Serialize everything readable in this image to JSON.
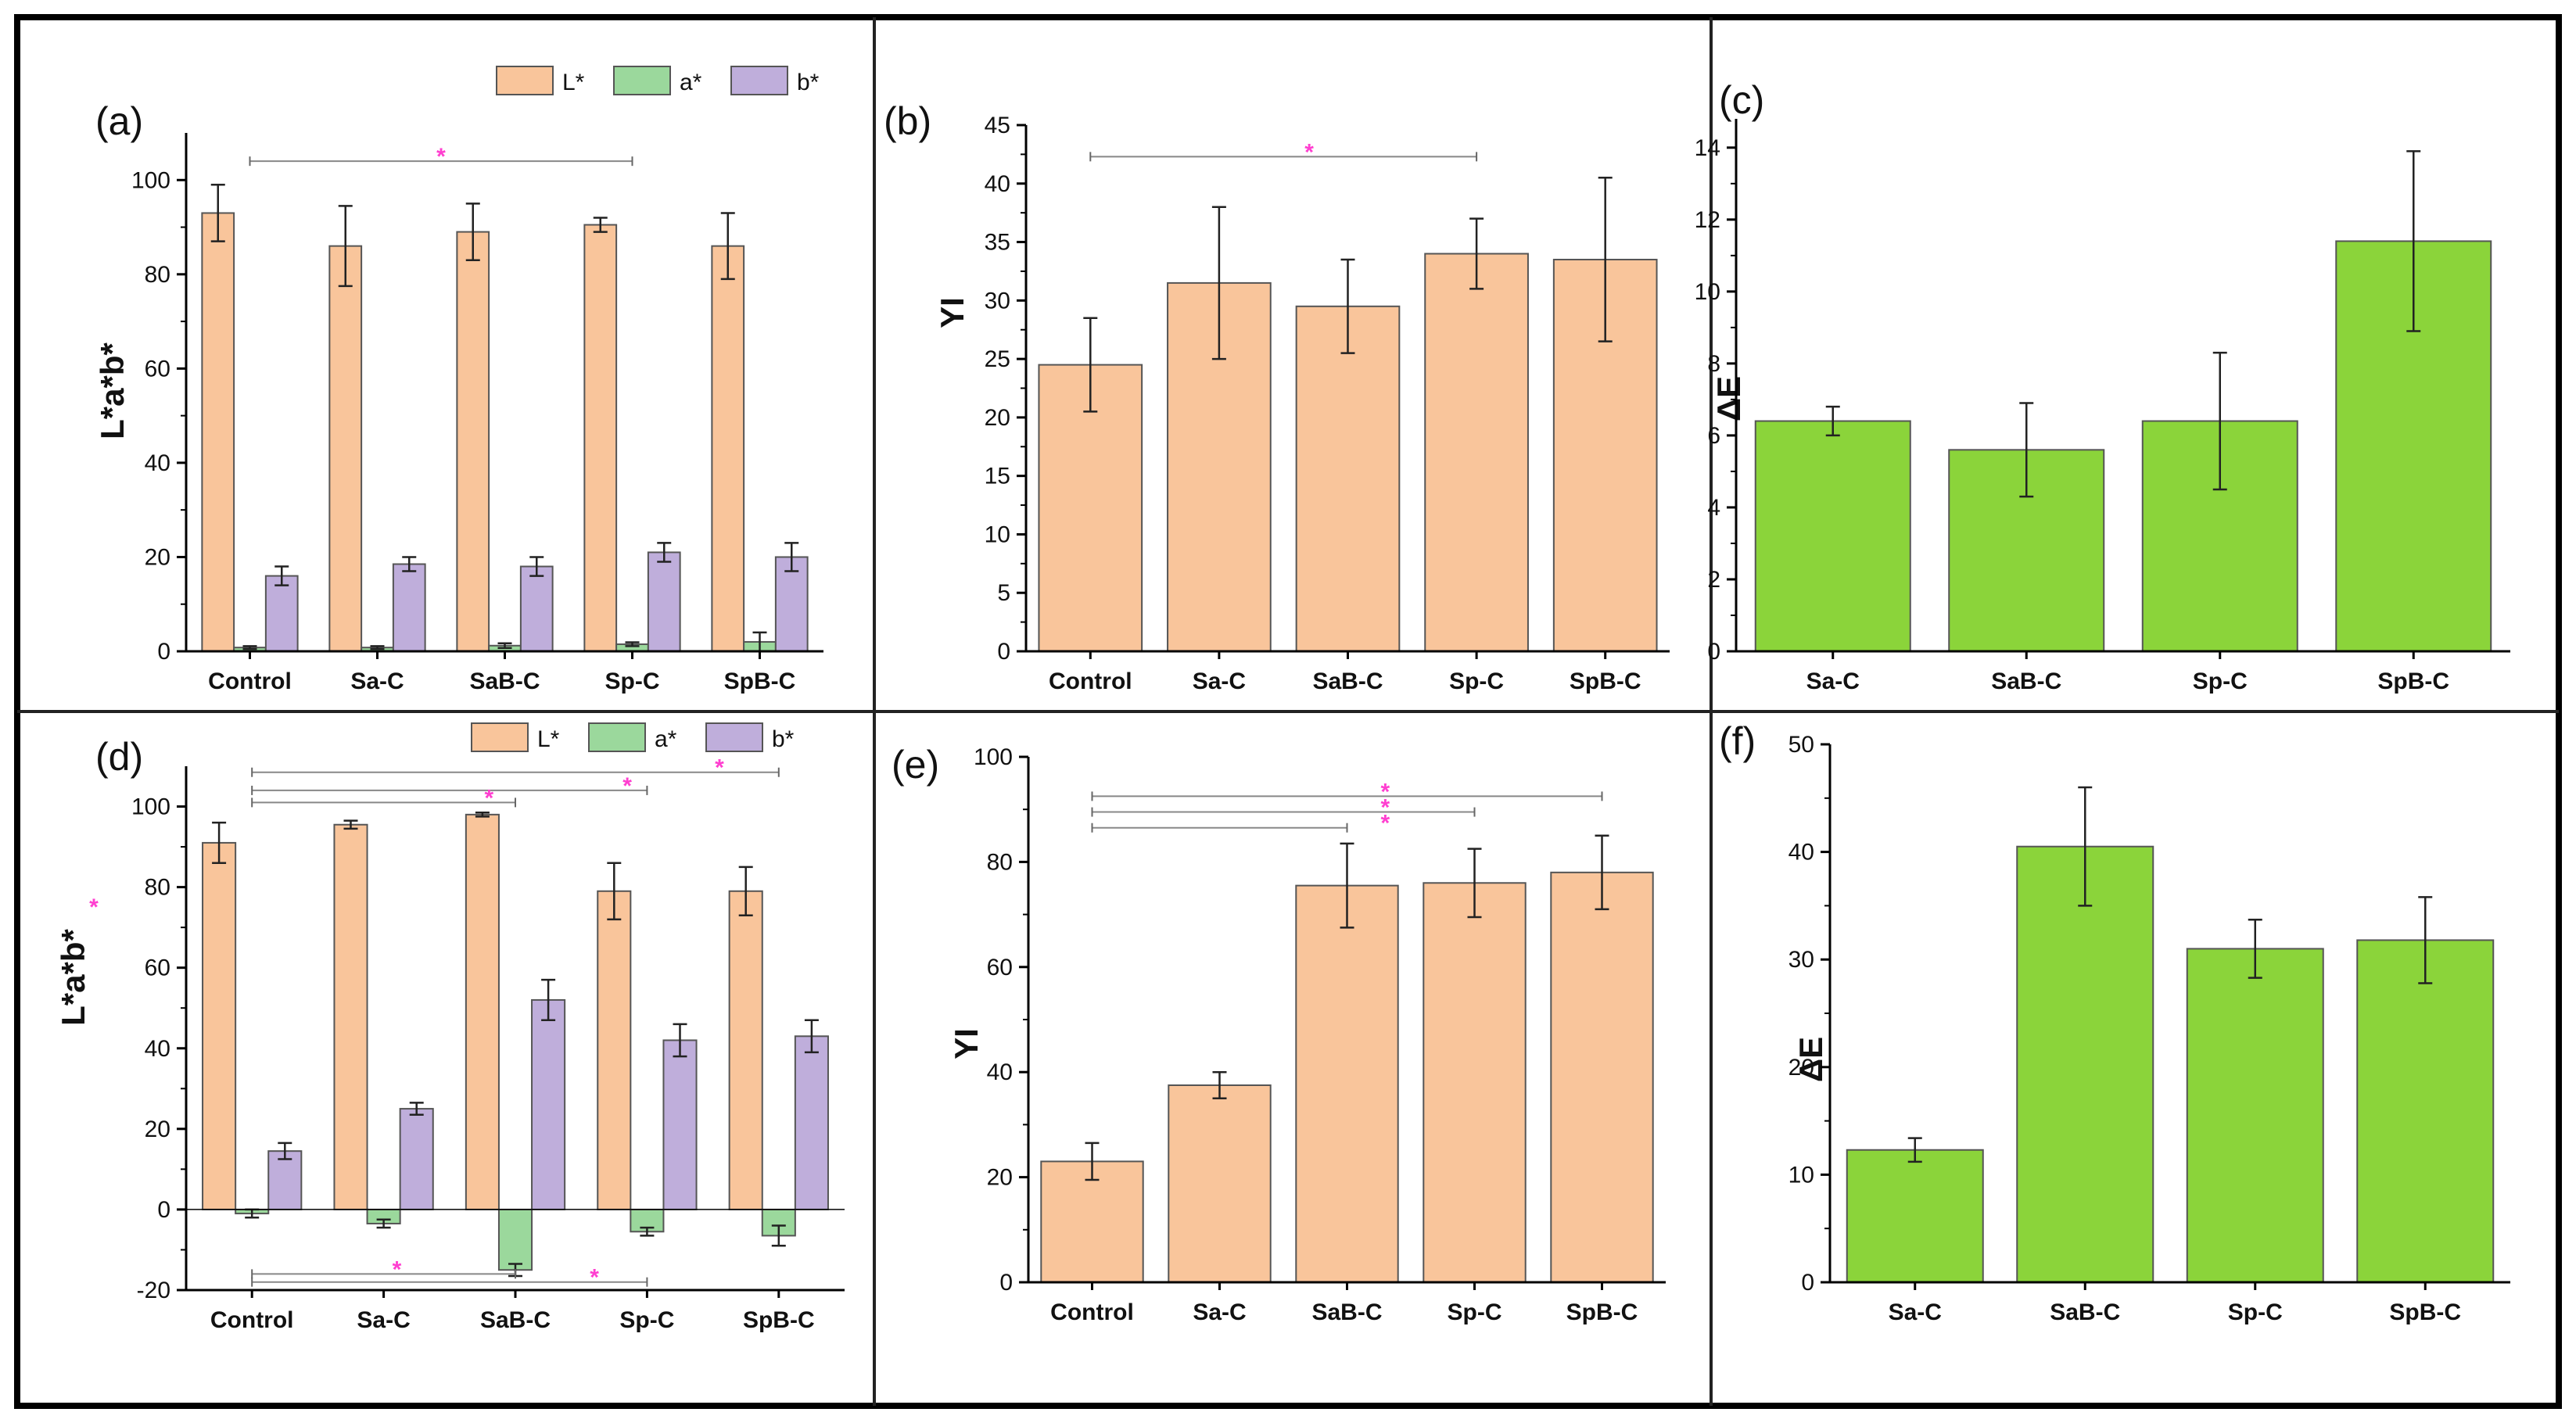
{
  "figure": {
    "colors": {
      "L": "#f9c59b",
      "a": "#9bd89c",
      "b": "#bfaedb",
      "yi": "#f9c59b",
      "de": "#8bd43a",
      "star": "#ff3fd0",
      "border": "#000000"
    }
  },
  "chart_data": [
    {
      "id": "a",
      "panel_label": "(a)",
      "type": "bar",
      "ylabel": "L*a*b*",
      "ylim": [
        0,
        110
      ],
      "yticks": [
        0,
        20,
        40,
        60,
        80,
        100
      ],
      "categories": [
        "Control",
        "Sa-C",
        "SaB-C",
        "Sp-C",
        "SpB-C"
      ],
      "series": [
        {
          "name": "L*",
          "key": "L",
          "values": [
            93,
            86,
            89,
            90.5,
            86
          ],
          "errors": [
            6,
            8.5,
            6,
            1.5,
            7
          ]
        },
        {
          "name": "a*",
          "key": "a",
          "values": [
            0.8,
            0.8,
            1.2,
            1.5,
            2
          ],
          "errors": [
            0.3,
            0.3,
            0.5,
            0.4,
            2
          ]
        },
        {
          "name": "b*",
          "key": "b",
          "values": [
            16,
            18.5,
            18,
            21,
            20
          ],
          "errors": [
            2,
            1.5,
            2,
            2,
            3
          ]
        }
      ],
      "legend": [
        "L*",
        "a*",
        "b*"
      ],
      "significance": [
        {
          "from": 0,
          "to": 3,
          "y": 104,
          "star_at": 1.5,
          "label": "*"
        }
      ]
    },
    {
      "id": "b",
      "panel_label": "(b)",
      "type": "bar",
      "ylabel": "YI",
      "ylim": [
        0,
        45
      ],
      "yticks": [
        0,
        5,
        10,
        15,
        20,
        25,
        30,
        35,
        40,
        45
      ],
      "categories": [
        "Control",
        "Sa-C",
        "SaB-C",
        "Sp-C",
        "SpB-C"
      ],
      "series": [
        {
          "name": "YI",
          "key": "yi",
          "values": [
            24.5,
            31.5,
            29.5,
            34,
            33.5
          ],
          "errors": [
            4,
            6.5,
            4,
            3,
            7
          ]
        }
      ],
      "significance": [
        {
          "from": 0,
          "to": 3,
          "y": 42.3,
          "star_at": 1.7,
          "label": "*"
        }
      ]
    },
    {
      "id": "c",
      "panel_label": "(c)",
      "type": "bar",
      "ylabel": "ΔE",
      "ylim": [
        0,
        14.8
      ],
      "yticks": [
        0,
        2,
        4,
        6,
        8,
        10,
        12,
        14
      ],
      "categories": [
        "Sa-C",
        "SaB-C",
        "Sp-C",
        "SpB-C"
      ],
      "series": [
        {
          "name": "ΔE",
          "key": "de",
          "values": [
            6.4,
            5.6,
            6.4,
            11.4
          ],
          "errors": [
            0.4,
            1.3,
            1.9,
            2.5
          ]
        }
      ],
      "significance": []
    },
    {
      "id": "d",
      "panel_label": "(d)",
      "type": "bar",
      "ylabel": "L*a*b*",
      "ylim": [
        -20,
        110
      ],
      "yticks": [
        -20,
        0,
        20,
        40,
        60,
        80,
        100
      ],
      "categories": [
        "Control",
        "Sa-C",
        "SaB-C",
        "Sp-C",
        "SpB-C"
      ],
      "series": [
        {
          "name": "L*",
          "key": "L",
          "values": [
            91,
            95.5,
            98,
            79,
            79
          ],
          "errors": [
            5,
            1,
            0.5,
            7,
            6
          ]
        },
        {
          "name": "a*",
          "key": "a",
          "values": [
            -1,
            -3.5,
            -15,
            -5.5,
            -6.5
          ],
          "errors": [
            1,
            1,
            1.5,
            1,
            2.5
          ]
        },
        {
          "name": "b*",
          "key": "b",
          "values": [
            14.5,
            25,
            52,
            42,
            43
          ],
          "errors": [
            2,
            1.5,
            5,
            4,
            4
          ]
        }
      ],
      "legend": [
        "L*",
        "a*",
        "b*"
      ],
      "significance": [
        {
          "from": 0,
          "to": 4,
          "y": 108.5,
          "star_at": 3.55,
          "label": "*"
        },
        {
          "from": 0,
          "to": 3,
          "y": 104,
          "star_at": 2.85,
          "label": "*"
        },
        {
          "from": 0,
          "to": 2,
          "y": 101,
          "star_at": 1.8,
          "label": "*"
        },
        {
          "from": 0,
          "to": 2,
          "y": -16,
          "star_at": 1.1,
          "label": "*"
        },
        {
          "from": 0,
          "to": 3,
          "y": -18,
          "star_at": 2.6,
          "label": "*"
        }
      ],
      "stray_mark": "*"
    },
    {
      "id": "e",
      "panel_label": "(e)",
      "type": "bar",
      "ylabel": "YI",
      "ylim": [
        0,
        100
      ],
      "yticks": [
        0,
        20,
        40,
        60,
        80,
        100
      ],
      "categories": [
        "Control",
        "Sa-C",
        "SaB-C",
        "Sp-C",
        "SpB-C"
      ],
      "series": [
        {
          "name": "YI",
          "key": "yi",
          "values": [
            23,
            37.5,
            75.5,
            76,
            78
          ],
          "errors": [
            3.5,
            2.5,
            8,
            6.5,
            7
          ]
        }
      ],
      "significance": [
        {
          "from": 0,
          "to": 4,
          "y": 92.5,
          "star_at": 2.3,
          "label": "*"
        },
        {
          "from": 0,
          "to": 3,
          "y": 89.5,
          "star_at": 2.3,
          "label": "*"
        },
        {
          "from": 0,
          "to": 2,
          "y": 86.5,
          "star_at": 2.3,
          "label": "*"
        }
      ]
    },
    {
      "id": "f",
      "panel_label": "(f)",
      "type": "bar",
      "ylabel": "ΔE",
      "ylim": [
        0,
        50
      ],
      "yticks": [
        0,
        10,
        20,
        30,
        40,
        50
      ],
      "categories": [
        "Sa-C",
        "SaB-C",
        "Sp-C",
        "SpB-C"
      ],
      "series": [
        {
          "name": "ΔE",
          "key": "de",
          "values": [
            12.3,
            40.5,
            31,
            31.8
          ],
          "errors": [
            1.1,
            5.5,
            2.7,
            4
          ]
        }
      ],
      "significance": []
    }
  ]
}
